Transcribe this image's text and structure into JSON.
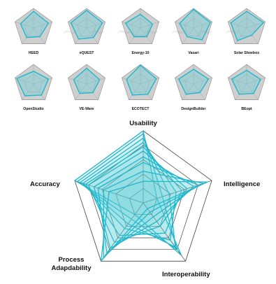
{
  "colors": {
    "series": "#1fb7cc",
    "series_fill": "rgba(90,205,220,0.35)",
    "grid": "#444444",
    "small_bg": "#cfcfcf"
  },
  "chart_data": [
    {
      "type": "radar",
      "label": "HEED",
      "values": [
        0.85,
        0.8,
        0.55,
        0.6,
        0.7
      ]
    },
    {
      "type": "radar",
      "label": "eQUEST",
      "values": [
        0.9,
        0.85,
        0.6,
        0.7,
        0.85
      ]
    },
    {
      "type": "radar",
      "label": "Energy-10",
      "values": [
        0.7,
        0.65,
        0.55,
        0.55,
        0.8
      ]
    },
    {
      "type": "radar",
      "label": "Vasari",
      "values": [
        0.95,
        0.9,
        0.75,
        0.55,
        0.75
      ]
    },
    {
      "type": "radar",
      "label": "Solar Shoebox",
      "values": [
        0.85,
        0.9,
        0.45,
        0.8,
        0.85
      ]
    },
    {
      "type": "radar",
      "label": "OpenStudio",
      "values": [
        0.65,
        0.8,
        0.7,
        0.75,
        0.9
      ]
    },
    {
      "type": "radar",
      "label": "VE-Ware",
      "values": [
        0.8,
        0.7,
        0.55,
        0.6,
        0.7
      ]
    },
    {
      "type": "radar",
      "label": "ECOTECT",
      "values": [
        0.95,
        0.85,
        0.65,
        0.7,
        0.75
      ]
    },
    {
      "type": "radar",
      "label": "DesignBuilder",
      "values": [
        0.75,
        0.8,
        0.55,
        0.65,
        0.8
      ]
    },
    {
      "type": "radar",
      "label": "BEopt",
      "values": [
        0.7,
        0.75,
        0.6,
        0.65,
        0.8
      ]
    },
    {
      "type": "radar",
      "label": "",
      "axes": [
        "Usability",
        "Intelligence",
        "Interoperability",
        "Process Adapdability",
        "Accuracy"
      ],
      "levels": 5,
      "series": [
        {
          "values": [
            5.0,
            1.0,
            4.5,
            1.0,
            5.0
          ]
        },
        {
          "values": [
            4.8,
            1.4,
            4.0,
            1.4,
            4.8
          ]
        },
        {
          "values": [
            4.5,
            1.9,
            3.8,
            1.8,
            4.6
          ]
        },
        {
          "values": [
            4.2,
            2.4,
            3.2,
            2.2,
            4.4
          ]
        },
        {
          "values": [
            3.9,
            2.8,
            2.6,
            2.8,
            4.2
          ]
        },
        {
          "values": [
            3.6,
            3.2,
            2.0,
            3.4,
            4.0
          ]
        },
        {
          "values": [
            3.2,
            3.7,
            1.6,
            3.9,
            3.6
          ]
        },
        {
          "values": [
            2.8,
            4.0,
            1.2,
            4.3,
            3.3
          ]
        },
        {
          "values": [
            2.2,
            4.4,
            0.8,
            4.7,
            2.9
          ]
        },
        {
          "values": [
            1.5,
            4.7,
            0.5,
            5.0,
            2.5
          ]
        }
      ]
    }
  ]
}
